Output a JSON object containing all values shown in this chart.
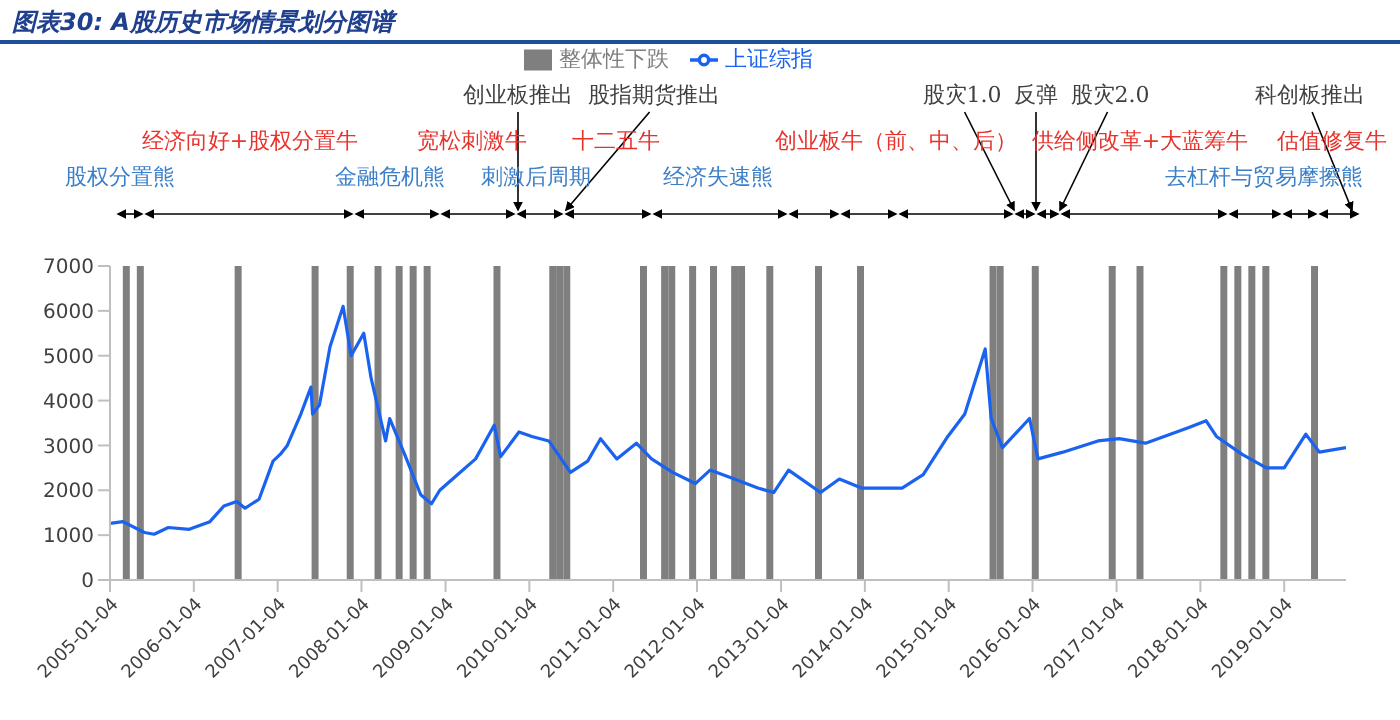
{
  "chart_data": {
    "type": "line",
    "title": "图表30: A股历史市场情景划分图谱",
    "annotations": [
      "创业板推出",
      "股指期货推出",
      "股灾1.0",
      "反弹",
      "股灾2.0",
      "科创板推出",
      "经济向好+股权分置牛",
      "宽松刺激牛",
      "十二五牛",
      "创业板牛（前、中、后）",
      "供给侧改革+大蓝筹牛",
      "估值修复牛",
      "股权分置熊",
      "金融危机熊",
      "刺激后周期",
      "经济失速熊",
      "去杠杆与贸易摩擦熊"
    ],
    "xlim": [
      "2005-01-04",
      "2019-09-30"
    ],
    "xticks": [
      "2005-01-04",
      "2006-01-04",
      "2007-01-04",
      "2008-01-04",
      "2009-01-04",
      "2010-01-04",
      "2011-01-04",
      "2012-01-04",
      "2013-01-04",
      "2014-01-04",
      "2015-01-04",
      "2016-01-04",
      "2017-01-04",
      "2018-01-04",
      "2019-01-04"
    ],
    "ylim": [
      0,
      7000
    ],
    "yticks": [
      0,
      1000,
      2000,
      3000,
      4000,
      5000,
      6000,
      7000
    ],
    "grid": false,
    "legend": "top",
    "series": [
      {
        "name": "整体性下跌",
        "type": "bar",
        "color": "#7f7f7f",
        "x": [
          "2005-03-16",
          "2005-05-16",
          "2006-07-16",
          "2007-06-16",
          "2007-11-16",
          "2008-03-16",
          "2008-06-16",
          "2008-08-16",
          "2008-10-16",
          "2009-08-16",
          "2010-04-16",
          "2010-05-16",
          "2010-06-16",
          "2011-05-16",
          "2011-08-16",
          "2011-09-16",
          "2011-12-16",
          "2012-03-16",
          "2012-06-16",
          "2012-07-16",
          "2012-11-16",
          "2013-06-16",
          "2013-12-16",
          "2015-07-16",
          "2015-08-16",
          "2016-01-16",
          "2016-12-16",
          "2017-04-16",
          "2018-04-16",
          "2018-06-16",
          "2018-08-16",
          "2018-10-16",
          "2019-05-16"
        ],
        "values": [
          7000,
          7000,
          7000,
          7000,
          7000,
          7000,
          7000,
          7000,
          7000,
          7000,
          7000,
          7000,
          7000,
          7000,
          7000,
          7000,
          7000,
          7000,
          7000,
          7000,
          7000,
          7000,
          7000,
          7000,
          7000,
          7000,
          7000,
          7000,
          7000,
          7000,
          7000,
          7000,
          7000
        ]
      },
      {
        "name": "上证综指",
        "color": "#1a62f0",
        "x": [
          "2005-01-04",
          "2005-03-01",
          "2005-06-03",
          "2005-07-15",
          "2005-09-15",
          "2005-12-15",
          "2006-03-15",
          "2006-05-15",
          "2006-07-10",
          "2006-08-15",
          "2006-10-15",
          "2006-12-15",
          "2007-01-15",
          "2007-02-15",
          "2007-04-15",
          "2007-05-29",
          "2007-06-05",
          "2007-07-05",
          "2007-08-20",
          "2007-10-16",
          "2007-11-20",
          "2008-01-14",
          "2008-02-15",
          "2008-04-18",
          "2008-05-06",
          "2008-07-10",
          "2008-09-18",
          "2008-11-04",
          "2008-12-10",
          "2009-02-15",
          "2009-05-15",
          "2009-08-04",
          "2009-09-01",
          "2009-11-20",
          "2010-01-15",
          "2010-03-30",
          "2010-07-02",
          "2010-09-15",
          "2010-11-10",
          "2011-01-20",
          "2011-04-15",
          "2011-06-20",
          "2011-09-20",
          "2011-12-28",
          "2012-03-01",
          "2012-06-15",
          "2012-09-25",
          "2012-12-03",
          "2013-02-06",
          "2013-06-25",
          "2013-09-15",
          "2013-12-20",
          "2014-03-15",
          "2014-06-15",
          "2014-09-15",
          "2014-12-31",
          "2015-03-15",
          "2015-06-12",
          "2015-07-08",
          "2015-08-26",
          "2015-12-22",
          "2016-01-28",
          "2016-05-15",
          "2016-10-15",
          "2017-01-15",
          "2017-05-10",
          "2017-11-15",
          "2018-01-29",
          "2018-03-15",
          "2018-07-05",
          "2018-10-18",
          "2019-01-04",
          "2019-04-08",
          "2019-06-06",
          "2019-09-30"
        ],
        "values": [
          1260,
          1300,
          1060,
          1020,
          1170,
          1130,
          1300,
          1650,
          1750,
          1600,
          1800,
          2650,
          2800,
          3000,
          3700,
          4300,
          3700,
          3900,
          5200,
          6100,
          5000,
          5500,
          4500,
          3100,
          3600,
          2800,
          1900,
          1700,
          2000,
          2300,
          2700,
          3450,
          2750,
          3300,
          3200,
          3100,
          2400,
          2650,
          3150,
          2700,
          3050,
          2700,
          2400,
          2150,
          2450,
          2250,
          2050,
          1950,
          2450,
          1950,
          2250,
          2050,
          2050,
          2050,
          2350,
          3200,
          3700,
          5150,
          3600,
          2950,
          3600,
          2700,
          2850,
          3100,
          3150,
          3050,
          3400,
          3550,
          3200,
          2800,
          2500,
          2500,
          3250,
          2850,
          2950
        ]
      }
    ]
  }
}
